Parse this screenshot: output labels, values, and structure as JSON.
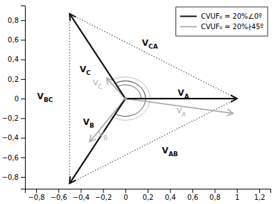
{
  "chart_data": {
    "type": "vector",
    "xlim": [
      -0.9,
      1.3
    ],
    "ylim": [
      -0.92,
      0.95
    ],
    "xticks": [
      {
        "value": -0.8,
        "label": "−0,8"
      },
      {
        "value": -0.6,
        "label": "−0,6"
      },
      {
        "value": -0.4,
        "label": "−0,4"
      },
      {
        "value": -0.2,
        "label": "−0,2"
      },
      0.0,
      {
        "value": 0.2,
        "label": "0,2"
      },
      {
        "value": 0.4,
        "label": "0,4"
      },
      {
        "value": 0.6,
        "label": "0,6"
      },
      {
        "value": 0.8,
        "label": "0,8"
      },
      1.0,
      {
        "value": 1.2,
        "label": "1,2"
      }
    ],
    "yticks": [
      {
        "value": -0.8,
        "label": "−0,8"
      },
      {
        "value": -0.6,
        "label": "−0,6"
      },
      {
        "value": -0.4,
        "label": "−0,4"
      },
      {
        "value": -0.2,
        "label": "−0,2"
      },
      0.0,
      {
        "value": 0.2,
        "label": "0,2"
      },
      {
        "value": 0.4,
        "label": "0,4"
      },
      {
        "value": 0.6,
        "label": "0,6"
      },
      {
        "value": 0.8,
        "label": "0,8"
      }
    ],
    "grid": false,
    "legend": "upper right",
    "series": [
      {
        "name": "CVUF₀ = 20%∠0º",
        "color": "#111111",
        "x": [
          0.0,
          0.0,
          0.0
        ],
        "y": [
          0.0,
          0.0,
          0.0
        ],
        "dx": [
          1.0,
          -0.5,
          -0.5
        ],
        "dy": [
          0.0,
          -0.866,
          0.866
        ],
        "labels": [
          "VA",
          "VB",
          "VC"
        ],
        "label_x": [
          0.52,
          -0.33,
          -0.36
        ],
        "label_y": [
          0.06,
          -0.24,
          0.3
        ],
        "arcs": [
          {
            "r": 0.18,
            "start": -120,
            "end": 120
          },
          {
            "r": 0.14,
            "start": 0,
            "end": 120
          }
        ]
      },
      {
        "name": "CVUF₀ = 20%∤45º",
        "color": "#aaaaaa",
        "x": [
          0.0,
          0.0,
          0.0
        ],
        "y": [
          0.0,
          0.0,
          0.0
        ],
        "dx": [
          0.966,
          -0.32,
          -0.17
        ],
        "dy": [
          -0.15,
          -0.44,
          0.21
        ],
        "labels": [
          "VA",
          "VB",
          "VC"
        ],
        "label_x": [
          0.5,
          -0.2,
          -0.25
        ],
        "label_y": [
          -0.13,
          -0.37,
          0.16
        ],
        "arcs": [
          {
            "r": 0.22,
            "start": -126.03,
            "end": 128.99
          },
          {
            "r": 0.18,
            "start": -8.83,
            "end": 128.99
          }
        ]
      }
    ],
    "line_voltages": {
      "labels": [
        "VBC",
        "VCA",
        "VAB"
      ],
      "x": [
        -0.72,
        0.22,
        0.4
      ],
      "y": [
        0.02,
        0.57,
        -0.53
      ],
      "color": "#666666",
      "line_style": "dotted"
    }
  }
}
